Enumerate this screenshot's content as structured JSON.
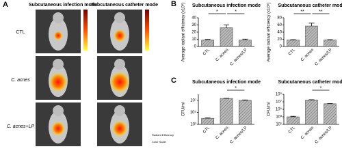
{
  "panel_a": {
    "label": "A",
    "columns": [
      "Subcutaneous infection mode",
      "Subcutaneous catheter mode"
    ],
    "rows": [
      "CTL",
      "C. acnes",
      "C. acnes+LP"
    ],
    "scale_note": "Radiant Efficiency",
    "scale_label": "Color Scale"
  },
  "chart_data": [
    {
      "type": "bar",
      "panel": "B",
      "title": "Subcutaneous infection mode",
      "ylabel": "Average radiant efficiency (x10⁹)",
      "categories": [
        "CTL",
        "C. acnes",
        "C. acnes/LP"
      ],
      "values": [
        9,
        26,
        9
      ],
      "errors": [
        0.8,
        4,
        1.2
      ],
      "color": "#9a9a9a",
      "ylim": [
        0,
        40
      ],
      "yticks": [
        0,
        10,
        20,
        30,
        40
      ],
      "log": false,
      "significance": [
        {
          "from": 0,
          "to": 1,
          "label": "*"
        },
        {
          "from": 1,
          "to": 2,
          "label": "*"
        }
      ]
    },
    {
      "type": "bar",
      "title": "Subcutaneous catheter mode",
      "ylabel": "Average radiant efficiency (x10⁹)",
      "categories": [
        "CTL",
        "C. acnes",
        "C. acnes/LP"
      ],
      "values": [
        18,
        57,
        18
      ],
      "errors": [
        1,
        8,
        1
      ],
      "color": "#9a9a9a",
      "ylim": [
        0,
        80
      ],
      "yticks": [
        0,
        20,
        40,
        60,
        80
      ],
      "log": false,
      "significance": [
        {
          "from": 0,
          "to": 1,
          "label": "**"
        },
        {
          "from": 1,
          "to": 2,
          "label": "**"
        }
      ]
    },
    {
      "type": "bar",
      "panel": "C",
      "title": "Subcutaneous infection mode",
      "ylabel": "CFU/ml",
      "categories": [
        "CTL",
        "C. acnes",
        "C. acnes/LP"
      ],
      "values": [
        10000,
        20000000,
        10000000
      ],
      "errors": [
        2000,
        2000000,
        1500000
      ],
      "color": "#9a9a9a",
      "ylim": [
        1000,
        100000000
      ],
      "yticks": [
        {
          "value": 1000,
          "label": "10³"
        },
        {
          "value": 100000,
          "label": "10⁵"
        },
        {
          "value": 10000000,
          "label": "10⁷"
        }
      ],
      "log": true,
      "significance": [
        {
          "from": 1,
          "to": 2,
          "label": "*"
        }
      ]
    },
    {
      "type": "bar",
      "title": "Subcutaneous catheter mode",
      "ylabel": "CFU/ml",
      "categories": [
        "CTL",
        "C. acnes",
        "C. acnes/LP"
      ],
      "values": [
        1000,
        30000000,
        3000000
      ],
      "errors": [
        400,
        6000000,
        400000
      ],
      "color": "#9a9a9a",
      "ylim": [
        10,
        1000000000
      ],
      "yticks": [
        {
          "value": 10,
          "label": "10¹"
        },
        {
          "value": 1000,
          "label": "10³"
        },
        {
          "value": 100000,
          "label": "10⁵"
        },
        {
          "value": 10000000,
          "label": "10⁷"
        },
        {
          "value": 1000000000,
          "label": "10⁹"
        }
      ],
      "log": true,
      "significance": [
        {
          "from": 1,
          "to": 2,
          "label": "*"
        }
      ]
    }
  ]
}
